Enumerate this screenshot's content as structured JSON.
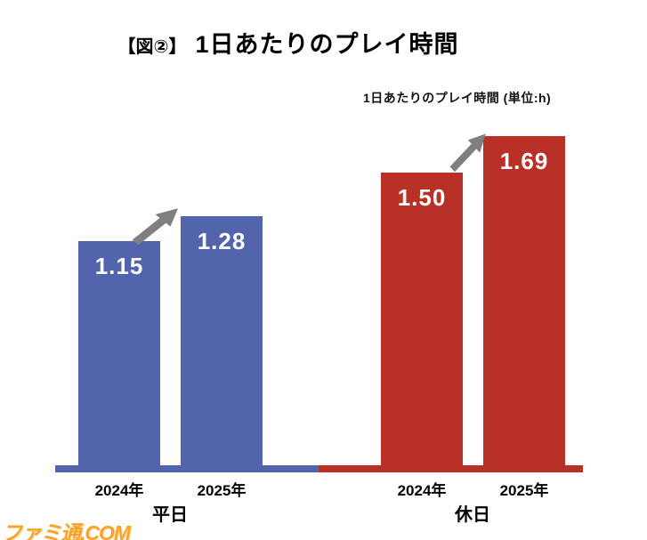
{
  "header": {
    "title_prefix": "【図②】",
    "title_main": "1日あたりのプレイ時間"
  },
  "subtitle": "1日あたりのプレイ時間 (単位:h)",
  "watermark": "ファミ通.COM",
  "chart_data": {
    "type": "bar",
    "title": "【図②】 1日あたりのプレイ時間",
    "axis_note": "1日あたりのプレイ時間 (単位:h)",
    "unit": "h",
    "categories": [
      "2024年",
      "2025年"
    ],
    "groups": [
      {
        "label": "平日",
        "values": [
          1.15,
          1.28
        ],
        "color": "#5164ac"
      },
      {
        "label": "休日",
        "values": [
          1.5,
          1.69
        ],
        "color": "#b93026"
      }
    ],
    "value_labels": [
      "1.15",
      "1.28",
      "1.50",
      "1.69"
    ],
    "ylim": [
      0,
      2.4
    ],
    "grid": false,
    "legend": "none",
    "annotations": [
      {
        "type": "arrow",
        "group": "平日",
        "meaning": "increase from 2024 to 2025",
        "color": "#7f7f7f"
      },
      {
        "type": "arrow",
        "group": "休日",
        "meaning": "increase from 2024 to 2025",
        "color": "#7f7f7f"
      }
    ]
  }
}
